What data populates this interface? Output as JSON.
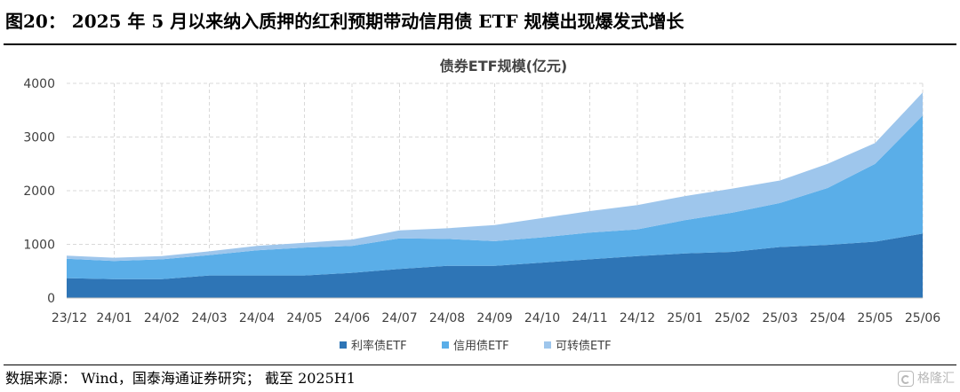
{
  "figure": {
    "caption": "图20：  2025 年 5 月以来纳入质押的红利预期带动信用债 ETF 规模出现爆发式增长",
    "source": "数据来源：  Wind，国泰海通证券研究；  截至 2025H1",
    "watermark": "格隆汇"
  },
  "chart_data": {
    "type": "area",
    "stacked": true,
    "title": "债券ETF规模(亿元)",
    "xlabel": "",
    "ylabel": "",
    "ylim": [
      0,
      4000
    ],
    "yticks": [
      0,
      1000,
      2000,
      3000,
      4000
    ],
    "grid": true,
    "legend_position": "bottom",
    "x": [
      "23/12",
      "24/01",
      "24/02",
      "24/03",
      "24/04",
      "24/05",
      "24/06",
      "24/07",
      "24/08",
      "24/09",
      "24/10",
      "24/11",
      "24/12",
      "25/01",
      "25/02",
      "25/03",
      "25/04",
      "25/05",
      "25/06"
    ],
    "series": [
      {
        "name": "利率债ETF",
        "color": "#2e75b6",
        "values": [
          370,
          350,
          350,
          420,
          420,
          420,
          470,
          540,
          600,
          600,
          660,
          720,
          780,
          830,
          860,
          950,
          990,
          1050,
          1200
        ]
      },
      {
        "name": "信用债ETF",
        "color": "#5aaee8",
        "values": [
          360,
          340,
          370,
          380,
          470,
          520,
          500,
          570,
          500,
          460,
          470,
          500,
          500,
          620,
          730,
          820,
          1060,
          1450,
          2200
        ]
      },
      {
        "name": "可转债ETF",
        "color": "#9ec6ec",
        "values": [
          60,
          60,
          60,
          70,
          80,
          90,
          120,
          150,
          200,
          300,
          360,
          400,
          450,
          450,
          450,
          420,
          450,
          390,
          430
        ]
      }
    ]
  }
}
